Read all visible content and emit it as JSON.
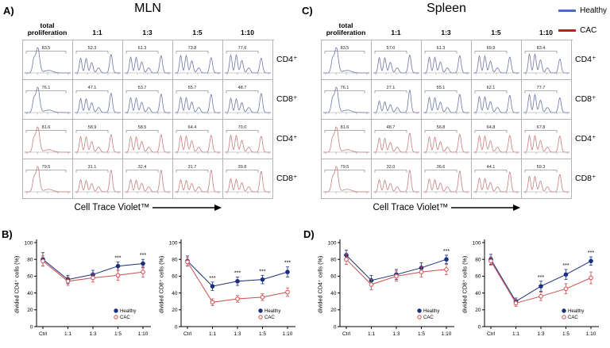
{
  "figure": {
    "panels": {
      "a_label": "A)",
      "b_label": "B)",
      "c_label": "C)",
      "d_label": "D)"
    },
    "x_axis_label": "Cell Trace Violet™",
    "legend": {
      "healthy": "Healthy",
      "cac": "CAC"
    }
  },
  "colors": {
    "healthy": "#1b2f7e",
    "cac": "#c94f4e",
    "healthy_hist": "#6d76a8",
    "cac_hist": "#c87f7f",
    "legend_healthy_line": "#4f6bbf",
    "legend_cac_line": "#d01717",
    "grid_border": "#b3b3b3",
    "significance": "#000000"
  },
  "chart_data": [
    {
      "id": "mln_histograms",
      "panel": "A",
      "type": "table",
      "title": "MLN",
      "columns": [
        "total proliferation",
        "1:1",
        "1:3",
        "1:5",
        "1:10"
      ],
      "xlabel": "Cell Trace Violet™",
      "rows": [
        {
          "label": "CD4⁺",
          "group": "Healthy",
          "values": [
            83.5,
            52.3,
            61.3,
            73.8,
            77.6
          ]
        },
        {
          "label": "CD8⁺",
          "group": "Healthy",
          "values": [
            76.1,
            47.1,
            53.7,
            55.7,
            48.7
          ]
        },
        {
          "label": "CD4⁺",
          "group": "CAC",
          "values": [
            81.6,
            58.9,
            58.5,
            64.4,
            70.0
          ]
        },
        {
          "label": "CD8⁺",
          "group": "CAC",
          "values": [
            79.5,
            31.1,
            32.4,
            31.7,
            39.8
          ]
        }
      ]
    },
    {
      "id": "spleen_histograms",
      "panel": "C",
      "type": "table",
      "title": "Spleen",
      "columns": [
        "total proliferation",
        "1:1",
        "1:3",
        "1:5",
        "1:10"
      ],
      "xlabel": "Cell Trace Violet™",
      "rows": [
        {
          "label": "CD4⁺",
          "group": "Healthy",
          "values": [
            83.5,
            57.0,
            61.3,
            69.9,
            83.4
          ]
        },
        {
          "label": "CD8⁺",
          "group": "Healthy",
          "values": [
            76.1,
            27.1,
            55.1,
            62.1,
            77.7
          ]
        },
        {
          "label": "CD4⁺",
          "group": "CAC",
          "values": [
            81.6,
            48.7,
            56.8,
            64.8,
            67.8
          ]
        },
        {
          "label": "CD8⁺",
          "group": "CAC",
          "values": [
            79.5,
            32.0,
            36.6,
            44.1,
            59.3
          ]
        }
      ]
    },
    {
      "id": "mln_cd4_line",
      "panel": "B",
      "type": "line",
      "ylabel": "divided CD4⁺ cells (%)",
      "categories": [
        "Ctrl",
        "1:1",
        "1:3",
        "1:5",
        "1:10"
      ],
      "ylim": [
        0,
        100
      ],
      "yticks": [
        0,
        20,
        40,
        60,
        80,
        100
      ],
      "series": [
        {
          "name": "Healthy",
          "values": [
            80,
            56,
            62,
            72,
            75
          ],
          "errors": [
            8,
            5,
            5,
            5,
            5
          ]
        },
        {
          "name": "CAC",
          "values": [
            78,
            54,
            58,
            61,
            65
          ],
          "errors": [
            6,
            5,
            5,
            6,
            6
          ]
        }
      ],
      "significance": [
        "",
        "",
        "",
        "***",
        "***"
      ]
    },
    {
      "id": "mln_cd8_line",
      "panel": "B",
      "type": "line",
      "ylabel": "divided CD8⁺ cells (%)",
      "categories": [
        "Ctrl",
        "1:1",
        "1:3",
        "1:5",
        "1:10"
      ],
      "ylim": [
        0,
        100
      ],
      "yticks": [
        0,
        20,
        40,
        60,
        80,
        100
      ],
      "series": [
        {
          "name": "Healthy",
          "values": [
            78,
            48,
            54,
            56,
            65
          ],
          "errors": [
            6,
            5,
            5,
            5,
            6
          ]
        },
        {
          "name": "CAC",
          "values": [
            77,
            29,
            33,
            35,
            41
          ],
          "errors": [
            5,
            4,
            4,
            4,
            5
          ]
        }
      ],
      "significance": [
        "",
        "***",
        "***",
        "***",
        "***"
      ]
    },
    {
      "id": "spleen_cd4_line",
      "panel": "D",
      "type": "line",
      "ylabel": "divided CD4⁺ cells (%)",
      "categories": [
        "Ctrl",
        "1:1",
        "1:3",
        "1:5",
        "1:10"
      ],
      "ylim": [
        0,
        100
      ],
      "yticks": [
        0,
        20,
        40,
        60,
        80,
        100
      ],
      "series": [
        {
          "name": "Healthy",
          "values": [
            85,
            55,
            62,
            70,
            80
          ],
          "errors": [
            6,
            6,
            6,
            6,
            5
          ]
        },
        {
          "name": "CAC",
          "values": [
            80,
            50,
            60,
            65,
            68
          ],
          "errors": [
            6,
            6,
            6,
            6,
            6
          ]
        }
      ],
      "significance": [
        "",
        "",
        "",
        "",
        "***"
      ]
    },
    {
      "id": "spleen_cd8_line",
      "panel": "D",
      "type": "line",
      "ylabel": "divided CD8⁺ cells (%)",
      "categories": [
        "Ctrl",
        "1:1",
        "1:3",
        "1:5",
        "1:10"
      ],
      "ylim": [
        0,
        100
      ],
      "yticks": [
        0,
        20,
        40,
        60,
        80,
        100
      ],
      "series": [
        {
          "name": "Healthy",
          "values": [
            80,
            30,
            48,
            62,
            78
          ],
          "errors": [
            6,
            4,
            6,
            6,
            5
          ]
        },
        {
          "name": "CAC",
          "values": [
            78,
            28,
            36,
            45,
            58
          ],
          "errors": [
            5,
            4,
            5,
            6,
            7
          ]
        }
      ],
      "significance": [
        "",
        "",
        "***",
        "***",
        "***"
      ]
    }
  ]
}
